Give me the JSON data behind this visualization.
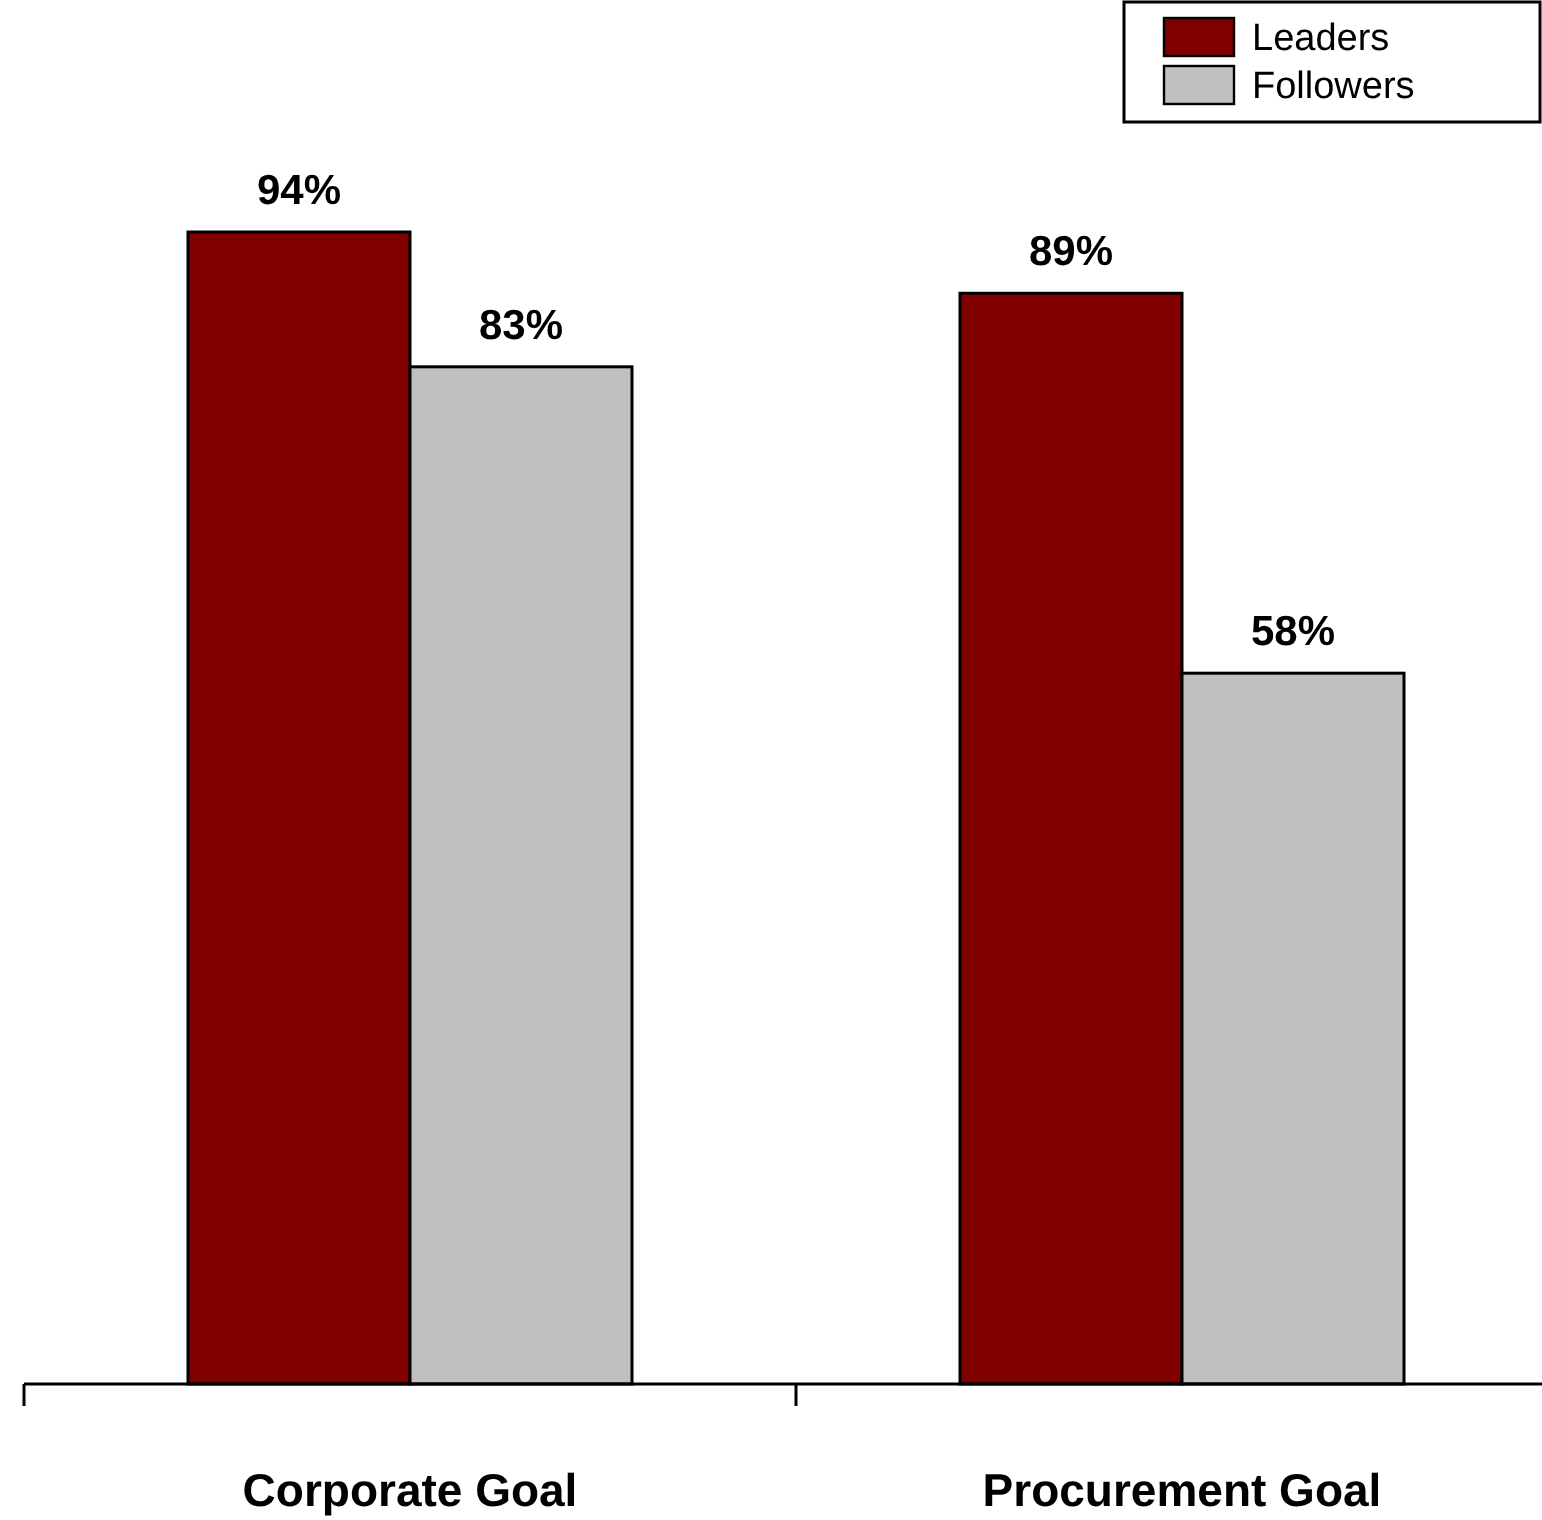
{
  "chart_data": {
    "type": "bar",
    "categories": [
      "Corporate Goal",
      "Procurement Goal"
    ],
    "series": [
      {
        "name": "Leaders",
        "color": "#800000",
        "values": [
          94,
          89
        ],
        "value_labels": [
          "94%",
          "89%"
        ]
      },
      {
        "name": "Followers",
        "color": "#c0c0c0",
        "values": [
          83,
          58
        ],
        "value_labels": [
          "83%",
          "58%"
        ]
      }
    ],
    "relative": false,
    "legend": "top right"
  }
}
